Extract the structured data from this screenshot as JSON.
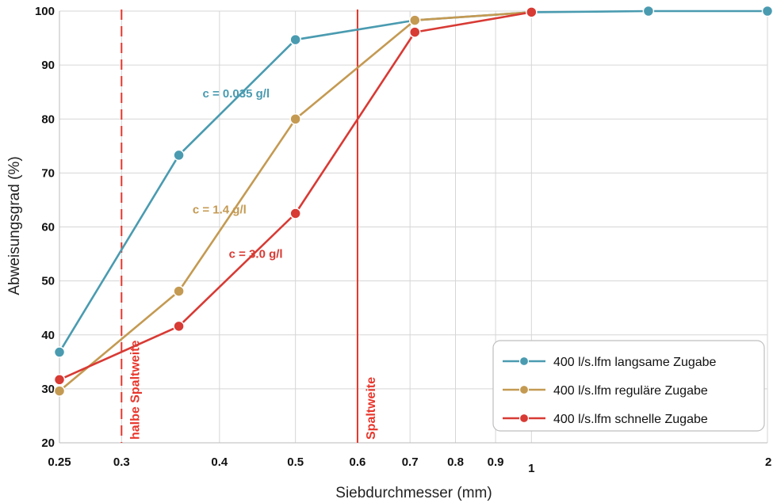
{
  "chart_data": {
    "type": "line",
    "xscale": "log",
    "xlim": [
      0.25,
      2
    ],
    "ylim": [
      20,
      100
    ],
    "xlabel": "Siebdurchmesser (mm)",
    "ylabel": "Abweisungsgrad (%)",
    "x_ticks": [
      {
        "value": 0.25,
        "label": "0.25"
      },
      {
        "value": 0.3,
        "label": "0.3"
      },
      {
        "value": 0.4,
        "label": "0.4"
      },
      {
        "value": 0.5,
        "label": "0.5"
      },
      {
        "value": 0.6,
        "label": "0.6"
      },
      {
        "value": 0.7,
        "label": "0.7"
      },
      {
        "value": 0.8,
        "label": "0.8"
      },
      {
        "value": 0.9,
        "label": "0.9"
      },
      {
        "value": 1,
        "label": "1"
      },
      {
        "value": 2,
        "label": "2"
      }
    ],
    "y_ticks": [
      {
        "value": 20,
        "label": "20"
      },
      {
        "value": 30,
        "label": "30"
      },
      {
        "value": 40,
        "label": "40"
      },
      {
        "value": 50,
        "label": "50"
      },
      {
        "value": 60,
        "label": "60"
      },
      {
        "value": 70,
        "label": "70"
      },
      {
        "value": 80,
        "label": "80"
      },
      {
        "value": 90,
        "label": "90"
      },
      {
        "value": 100,
        "label": "100"
      }
    ],
    "grid": true,
    "legend_position": "bottom-right",
    "series": [
      {
        "name": "400 l/s.lfm langsame Zugabe",
        "color": "#4a9bb0",
        "x": [
          0.25,
          0.355,
          0.5,
          0.71,
          1.0,
          1.41,
          2.0
        ],
        "y": [
          36.8,
          73.3,
          94.7,
          98.3,
          99.8,
          100,
          100
        ]
      },
      {
        "name": "400 l/s.lfm reguläre Zugabe",
        "color": "#c49a52",
        "x": [
          0.25,
          0.355,
          0.5,
          0.71,
          1.0
        ],
        "y": [
          29.6,
          48.1,
          80.0,
          98.3,
          99.8
        ]
      },
      {
        "name": "400 l/s.lfm schnelle Zugabe",
        "color": "#d83a34",
        "x": [
          0.25,
          0.355,
          0.5,
          0.71,
          1.0
        ],
        "y": [
          31.7,
          41.6,
          62.5,
          96.1,
          99.8
        ]
      }
    ],
    "reference_lines": [
      {
        "x": 0.3,
        "label": "halbe Spaltweite",
        "style": "dashed",
        "color": "#e8352b"
      },
      {
        "x": 0.6,
        "label": "Spaltweite",
        "style": "solid",
        "color": "#e8352b"
      }
    ],
    "annotations": [
      {
        "text": "c = 0.035 g/l",
        "x": 0.42,
        "y": 84,
        "color": "#4a9bb0"
      },
      {
        "text": "c = 1.4 g/l",
        "x": 0.4,
        "y": 62.5,
        "color": "#c49a52"
      },
      {
        "text": "c = 3.0 g/l",
        "x": 0.445,
        "y": 54.3,
        "color": "#d83a34"
      }
    ]
  }
}
